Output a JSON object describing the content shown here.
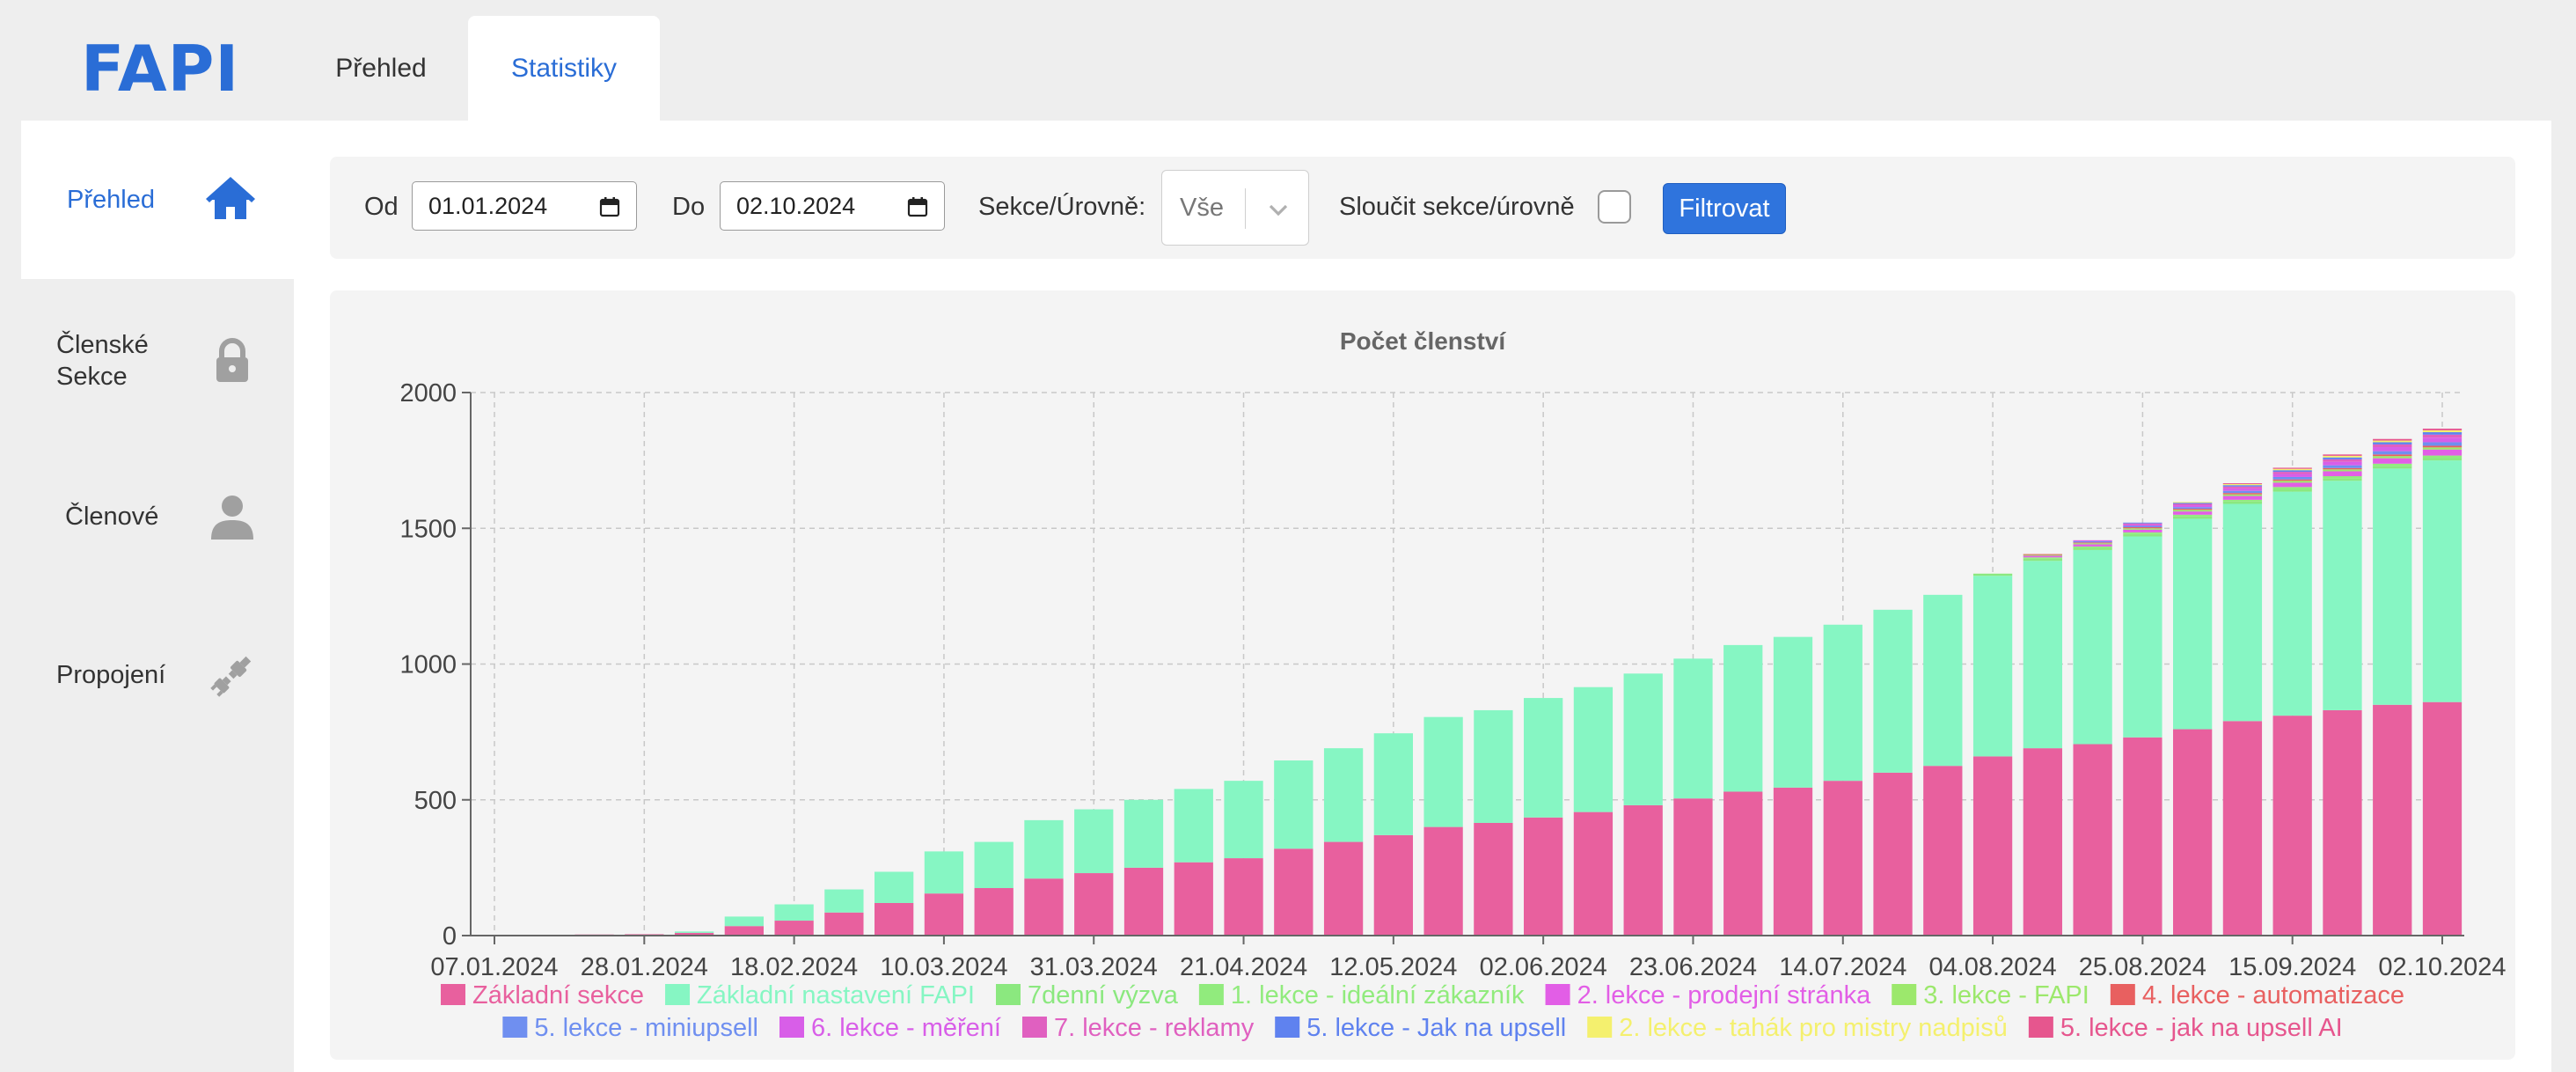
{
  "app": {
    "logo": "FAPI"
  },
  "top_tabs": [
    {
      "label": "Přehled",
      "active": false
    },
    {
      "label": "Statistiky",
      "active": true
    }
  ],
  "sidebar": {
    "items": [
      {
        "label": "Přehled",
        "icon": "home-icon",
        "active": true
      },
      {
        "label": "Členské Sekce",
        "icon": "lock-icon",
        "active": false
      },
      {
        "label": "Členové",
        "icon": "user-icon",
        "active": false
      },
      {
        "label": "Propojení",
        "icon": "plug-icon",
        "active": false
      }
    ]
  },
  "filters": {
    "from_label": "Od",
    "from_value": "01.01.2024",
    "to_label": "Do",
    "to_value": "02.10.2024",
    "section_label": "Sekce/Úrovně:",
    "section_value": "Vše",
    "merge_label": "Sloučit sekce/úrovně",
    "merge_checked": false,
    "filter_button": "Filtrovat"
  },
  "colors": {
    "accent": "#2a6dd6",
    "button": "#2f74dd"
  },
  "chart_data": {
    "type": "bar",
    "stacked": true,
    "title": "Počet členství",
    "xlabel": "",
    "ylabel": "",
    "ylim": [
      0,
      2000
    ],
    "yticks": [
      0,
      500,
      1000,
      1500,
      2000
    ],
    "grid": true,
    "legend_position": "bottom",
    "x_tick_labels": [
      "07.01.2024",
      "28.01.2024",
      "18.02.2024",
      "10.03.2024",
      "31.03.2024",
      "21.04.2024",
      "12.05.2024",
      "02.06.2024",
      "23.06.2024",
      "14.07.2024",
      "04.08.2024",
      "25.08.2024",
      "15.09.2024",
      "02.10.2024"
    ],
    "categories": [
      "07.01.2024",
      "14.01.2024",
      "21.01.2024",
      "28.01.2024",
      "04.02.2024",
      "11.02.2024",
      "18.02.2024",
      "25.02.2024",
      "03.03.2024",
      "10.03.2024",
      "17.03.2024",
      "24.03.2024",
      "31.03.2024",
      "07.04.2024",
      "14.04.2024",
      "21.04.2024",
      "28.04.2024",
      "05.05.2024",
      "12.05.2024",
      "19.05.2024",
      "26.05.2024",
      "02.06.2024",
      "09.06.2024",
      "16.06.2024",
      "23.06.2024",
      "30.06.2024",
      "07.07.2024",
      "14.07.2024",
      "21.07.2024",
      "28.07.2024",
      "04.08.2024",
      "11.08.2024",
      "18.08.2024",
      "25.08.2024",
      "01.09.2024",
      "08.09.2024",
      "15.09.2024",
      "22.09.2024",
      "29.09.2024",
      "02.10.2024"
    ],
    "series": [
      {
        "name": "Základní sekce",
        "color": "#e8609e",
        "values": [
          2,
          3,
          4,
          5,
          10,
          35,
          55,
          85,
          120,
          155,
          175,
          210,
          230,
          250,
          270,
          285,
          320,
          345,
          370,
          400,
          415,
          435,
          455,
          480,
          505,
          530,
          545,
          570,
          600,
          625,
          660,
          690,
          705,
          730,
          760,
          790,
          810,
          830,
          850,
          860
        ]
      },
      {
        "name": "Základní nastavení FAPI",
        "color": "#86f6c3",
        "values": [
          0,
          0,
          0,
          0,
          5,
          35,
          60,
          85,
          115,
          155,
          170,
          215,
          235,
          250,
          270,
          285,
          325,
          345,
          375,
          405,
          415,
          440,
          460,
          485,
          515,
          540,
          555,
          575,
          600,
          630,
          665,
          690,
          715,
          740,
          775,
          800,
          825,
          845,
          870,
          890
        ]
      },
      {
        "name": "7denní výzva",
        "color": "#8be87f",
        "values": [
          0,
          0,
          0,
          0,
          0,
          0,
          0,
          0,
          0,
          0,
          0,
          0,
          0,
          0,
          0,
          0,
          0,
          0,
          0,
          0,
          0,
          0,
          0,
          0,
          0,
          0,
          0,
          0,
          0,
          0,
          8,
          8,
          8,
          9,
          9,
          9,
          10,
          10,
          10,
          10
        ]
      },
      {
        "name": "1. lekce - ideální zákazník",
        "color": "#91eb7d",
        "values": [
          0,
          0,
          0,
          0,
          0,
          0,
          0,
          0,
          0,
          0,
          0,
          0,
          0,
          0,
          0,
          0,
          0,
          0,
          0,
          0,
          0,
          0,
          0,
          0,
          0,
          0,
          0,
          0,
          0,
          0,
          0,
          5,
          5,
          6,
          6,
          6,
          7,
          7,
          8,
          8
        ]
      },
      {
        "name": "2. lekce - prodejní stránka",
        "color": "#e25ee6",
        "values": [
          0,
          0,
          0,
          0,
          0,
          0,
          0,
          0,
          0,
          0,
          0,
          0,
          0,
          0,
          0,
          0,
          0,
          0,
          0,
          0,
          0,
          0,
          0,
          0,
          0,
          0,
          0,
          0,
          0,
          0,
          0,
          6,
          8,
          10,
          12,
          14,
          16,
          18,
          20,
          22
        ]
      },
      {
        "name": "3. lekce - FAPI",
        "color": "#9ce86c",
        "values": [
          0,
          0,
          0,
          0,
          0,
          0,
          0,
          0,
          0,
          0,
          0,
          0,
          0,
          0,
          0,
          0,
          0,
          0,
          0,
          0,
          0,
          0,
          0,
          0,
          0,
          0,
          0,
          0,
          0,
          0,
          0,
          3,
          4,
          5,
          6,
          6,
          7,
          7,
          8,
          8
        ]
      },
      {
        "name": "4. lekce - automatizace",
        "color": "#e86060",
        "values": [
          0,
          0,
          0,
          0,
          0,
          0,
          0,
          0,
          0,
          0,
          0,
          0,
          0,
          0,
          0,
          0,
          0,
          0,
          0,
          0,
          0,
          0,
          0,
          0,
          0,
          0,
          0,
          0,
          0,
          0,
          0,
          3,
          3,
          4,
          4,
          5,
          5,
          5,
          6,
          6
        ]
      },
      {
        "name": "5. lekce - miniupsell",
        "color": "#6f8ff0",
        "values": [
          0,
          0,
          0,
          0,
          0,
          0,
          0,
          0,
          0,
          0,
          0,
          0,
          0,
          0,
          0,
          0,
          0,
          0,
          0,
          0,
          0,
          0,
          0,
          0,
          0,
          0,
          0,
          0,
          0,
          0,
          0,
          0,
          4,
          5,
          6,
          8,
          9,
          10,
          12,
          13
        ]
      },
      {
        "name": "6. lekce - měření",
        "color": "#d85ee8",
        "values": [
          0,
          0,
          0,
          0,
          0,
          0,
          0,
          0,
          0,
          0,
          0,
          0,
          0,
          0,
          0,
          0,
          0,
          0,
          0,
          0,
          0,
          0,
          0,
          0,
          0,
          0,
          0,
          0,
          0,
          0,
          0,
          0,
          4,
          5,
          7,
          9,
          11,
          13,
          15,
          17
        ]
      },
      {
        "name": "7. lekce - reklamy",
        "color": "#e060c0",
        "values": [
          0,
          0,
          0,
          0,
          0,
          0,
          0,
          0,
          0,
          0,
          0,
          0,
          0,
          0,
          0,
          0,
          0,
          0,
          0,
          0,
          0,
          0,
          0,
          0,
          0,
          0,
          0,
          0,
          0,
          0,
          0,
          0,
          0,
          4,
          5,
          7,
          8,
          9,
          10,
          11
        ]
      },
      {
        "name": "5. lekce - Jak na upsell",
        "color": "#5f82ef",
        "values": [
          0,
          0,
          0,
          0,
          0,
          0,
          0,
          0,
          0,
          0,
          0,
          0,
          0,
          0,
          0,
          0,
          0,
          0,
          0,
          0,
          0,
          0,
          0,
          0,
          0,
          0,
          0,
          0,
          0,
          0,
          0,
          0,
          0,
          3,
          4,
          5,
          6,
          7,
          8,
          9
        ]
      },
      {
        "name": "2. lekce - tahák pro mistry nadpisů",
        "color": "#f4f06e",
        "values": [
          0,
          0,
          0,
          0,
          0,
          0,
          0,
          0,
          0,
          0,
          0,
          0,
          0,
          0,
          0,
          0,
          0,
          0,
          0,
          0,
          0,
          0,
          0,
          0,
          0,
          0,
          0,
          0,
          0,
          0,
          0,
          0,
          0,
          0,
          3,
          4,
          5,
          6,
          6,
          7
        ]
      },
      {
        "name": "5. lekce - jak na upsell AI",
        "color": "#e6568e",
        "values": [
          0,
          0,
          0,
          0,
          0,
          0,
          0,
          0,
          0,
          0,
          0,
          0,
          0,
          0,
          0,
          0,
          0,
          0,
          0,
          0,
          0,
          0,
          0,
          0,
          0,
          0,
          0,
          0,
          0,
          0,
          0,
          0,
          0,
          0,
          0,
          3,
          4,
          5,
          6,
          6
        ]
      }
    ]
  }
}
